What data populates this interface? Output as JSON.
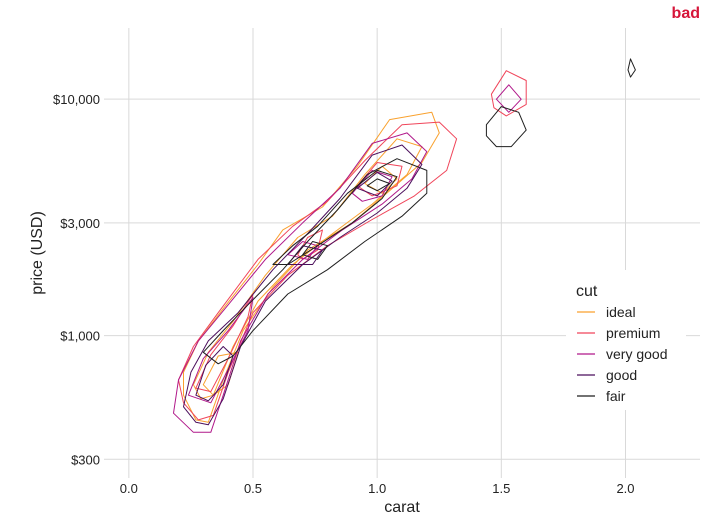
{
  "corner_label": "bad",
  "colors": {
    "corner_label": "#d6163a",
    "grid": "#d9d9d9",
    "panel": "#ebebeb"
  },
  "chart_data": {
    "type": "contour",
    "xlabel": "carat",
    "ylabel": "price (USD)",
    "xlim": [
      -0.1,
      2.3
    ],
    "ylim": [
      250,
      20000
    ],
    "y_scale": "log",
    "x_ticks": [
      0.0,
      0.5,
      1.0,
      1.5,
      2.0
    ],
    "x_tick_labels": [
      "0.0",
      "0.5",
      "1.0",
      "1.5",
      "2.0"
    ],
    "y_ticks": [
      300,
      1000,
      3000,
      10000
    ],
    "y_tick_labels": [
      "$300",
      "$1,000",
      "$3,000",
      "$10,000"
    ],
    "grid": true,
    "legend": {
      "title": "cut",
      "position": "right",
      "entries": [
        "ideal",
        "premium",
        "very good",
        "good",
        "fair"
      ]
    },
    "series": [
      {
        "name": "ideal",
        "color": "#f9a12e",
        "contours": [
          [
            [
              0.22,
              700
            ],
            [
              0.28,
              950
            ],
            [
              0.38,
              1300
            ],
            [
              0.52,
              2000
            ],
            [
              0.62,
              2800
            ],
            [
              0.78,
              3500
            ],
            [
              0.92,
              5200
            ],
            [
              1.05,
              8200
            ],
            [
              1.22,
              8800
            ],
            [
              1.25,
              7200
            ],
            [
              1.18,
              5400
            ],
            [
              1.05,
              4100
            ],
            [
              0.9,
              3000
            ],
            [
              0.72,
              2300
            ],
            [
              0.58,
              1600
            ],
            [
              0.46,
              1050
            ],
            [
              0.38,
              650
            ],
            [
              0.32,
              430
            ],
            [
              0.27,
              440
            ],
            [
              0.22,
              560
            ]
          ],
          [
            [
              0.26,
              620
            ],
            [
              0.32,
              850
            ],
            [
              0.42,
              1150
            ],
            [
              0.55,
              1800
            ],
            [
              0.68,
              2600
            ],
            [
              0.82,
              3200
            ],
            [
              0.95,
              4800
            ],
            [
              1.08,
              6800
            ],
            [
              1.18,
              6300
            ],
            [
              1.12,
              4800
            ],
            [
              0.98,
              3600
            ],
            [
              0.82,
              2700
            ],
            [
              0.66,
              2000
            ],
            [
              0.52,
              1400
            ],
            [
              0.42,
              900
            ],
            [
              0.34,
              560
            ],
            [
              0.29,
              540
            ]
          ],
          [
            [
              0.3,
              620
            ],
            [
              0.36,
              820
            ],
            [
              0.44,
              850
            ],
            [
              0.4,
              620
            ],
            [
              0.34,
              560
            ]
          ],
          [
            [
              0.95,
              4400
            ],
            [
              1.02,
              5200
            ],
            [
              1.08,
              4600
            ],
            [
              1.02,
              4000
            ]
          ]
        ]
      },
      {
        "name": "premium",
        "color": "#f0455a",
        "contours": [
          [
            [
              0.2,
              650
            ],
            [
              0.26,
              900
            ],
            [
              0.36,
              1250
            ],
            [
              0.52,
              2100
            ],
            [
              0.66,
              2900
            ],
            [
              0.8,
              3700
            ],
            [
              0.95,
              5500
            ],
            [
              1.1,
              7800
            ],
            [
              1.25,
              8000
            ],
            [
              1.32,
              6800
            ],
            [
              1.28,
              5000
            ],
            [
              1.15,
              3900
            ],
            [
              0.98,
              3100
            ],
            [
              0.8,
              2400
            ],
            [
              0.64,
              1800
            ],
            [
              0.5,
              1250
            ],
            [
              0.4,
              700
            ],
            [
              0.34,
              460
            ],
            [
              0.28,
              440
            ],
            [
              0.22,
              520
            ]
          ],
          [
            [
              0.27,
              600
            ],
            [
              0.33,
              830
            ],
            [
              0.42,
              1100
            ],
            [
              0.5,
              1500
            ],
            [
              0.48,
              1200
            ],
            [
              0.4,
              800
            ],
            [
              0.33,
              580
            ]
          ],
          [
            [
              0.68,
              2200
            ],
            [
              0.72,
              2600
            ],
            [
              0.78,
              2800
            ],
            [
              0.76,
              2300
            ],
            [
              0.7,
              2100
            ]
          ],
          [
            [
              0.92,
              4300
            ],
            [
              1.0,
              5400
            ],
            [
              1.1,
              5200
            ],
            [
              1.08,
              4300
            ],
            [
              0.98,
              3900
            ]
          ],
          [
            [
              1.46,
              10500
            ],
            [
              1.52,
              13200
            ],
            [
              1.6,
              12000
            ],
            [
              1.6,
              9500
            ],
            [
              1.52,
              8500
            ],
            [
              1.47,
              9200
            ]
          ]
        ]
      },
      {
        "name": "very good",
        "color": "#b0188a",
        "contours": [
          [
            [
              0.18,
              470
            ],
            [
              0.2,
              650
            ],
            [
              0.28,
              950
            ],
            [
              0.4,
              1350
            ],
            [
              0.55,
              2100
            ],
            [
              0.7,
              3000
            ],
            [
              0.85,
              4200
            ],
            [
              0.98,
              6500
            ],
            [
              1.12,
              7200
            ],
            [
              1.2,
              6000
            ],
            [
              1.14,
              4600
            ],
            [
              1.02,
              3600
            ],
            [
              0.86,
              2800
            ],
            [
              0.7,
              2100
            ],
            [
              0.56,
              1500
            ],
            [
              0.45,
              950
            ],
            [
              0.38,
              560
            ],
            [
              0.33,
              390
            ],
            [
              0.26,
              390
            ]
          ],
          [
            [
              0.24,
              560
            ],
            [
              0.3,
              800
            ],
            [
              0.4,
              1050
            ],
            [
              0.5,
              1450
            ],
            [
              0.48,
              1050
            ],
            [
              0.4,
              720
            ],
            [
              0.33,
              520
            ]
          ],
          [
            [
              0.64,
              2200
            ],
            [
              0.7,
              2500
            ],
            [
              0.76,
              2400
            ],
            [
              0.72,
              2100
            ]
          ],
          [
            [
              0.9,
              4000
            ],
            [
              0.98,
              5000
            ],
            [
              1.06,
              4700
            ],
            [
              1.02,
              3900
            ],
            [
              0.94,
              3700
            ]
          ],
          [
            [
              1.48,
              10000
            ],
            [
              1.53,
              11500
            ],
            [
              1.58,
              10000
            ],
            [
              1.53,
              8800
            ]
          ]
        ]
      },
      {
        "name": "good",
        "color": "#4b0f5c",
        "contours": [
          [
            [
              0.22,
              500
            ],
            [
              0.25,
              700
            ],
            [
              0.32,
              950
            ],
            [
              0.44,
              1250
            ],
            [
              0.58,
              1900
            ],
            [
              0.72,
              2700
            ],
            [
              0.85,
              3800
            ],
            [
              0.98,
              5800
            ],
            [
              1.1,
              6400
            ],
            [
              1.18,
              5300
            ],
            [
              1.12,
              4200
            ],
            [
              1.0,
              3300
            ],
            [
              0.85,
              2600
            ],
            [
              0.7,
              2000
            ],
            [
              0.55,
              1400
            ],
            [
              0.45,
              900
            ],
            [
              0.38,
              540
            ],
            [
              0.32,
              420
            ],
            [
              0.27,
              430
            ]
          ],
          [
            [
              0.27,
              560
            ],
            [
              0.31,
              750
            ],
            [
              0.38,
              900
            ],
            [
              0.42,
              820
            ],
            [
              0.38,
              620
            ],
            [
              0.32,
              530
            ]
          ],
          [
            [
              0.64,
              2000
            ],
            [
              0.7,
              2400
            ],
            [
              0.78,
              2300
            ],
            [
              0.74,
              2000
            ]
          ],
          [
            [
              0.92,
              4200
            ],
            [
              1.0,
              4900
            ],
            [
              1.06,
              4500
            ],
            [
              1.0,
              3900
            ]
          ]
        ]
      },
      {
        "name": "fair",
        "color": "#1f1f1f",
        "contours": [
          [
            [
              0.3,
              850
            ],
            [
              0.38,
              1050
            ],
            [
              0.48,
              1350
            ],
            [
              0.62,
              1900
            ],
            [
              0.72,
              2500
            ],
            [
              0.84,
              3400
            ],
            [
              0.96,
              4800
            ],
            [
              1.08,
              5600
            ],
            [
              1.2,
              5000
            ],
            [
              1.2,
              4000
            ],
            [
              1.1,
              3200
            ],
            [
              0.95,
              2500
            ],
            [
              0.8,
              1900
            ],
            [
              0.64,
              1500
            ],
            [
              0.5,
              1050
            ],
            [
              0.42,
              820
            ],
            [
              0.36,
              760
            ]
          ],
          [
            [
              0.58,
              2000
            ],
            [
              0.66,
              2400
            ],
            [
              0.76,
              2900
            ],
            [
              0.88,
              4000
            ],
            [
              1.0,
              5000
            ],
            [
              1.08,
              4700
            ],
            [
              1.02,
              3800
            ],
            [
              0.9,
              3000
            ],
            [
              0.76,
              2400
            ],
            [
              0.64,
              2000
            ]
          ],
          [
            [
              0.7,
              2200
            ],
            [
              0.74,
              2500
            ],
            [
              0.8,
              2400
            ],
            [
              0.76,
              2100
            ]
          ],
          [
            [
              0.96,
              4300
            ],
            [
              1.0,
              4600
            ],
            [
              1.05,
              4400
            ],
            [
              1.0,
              4100
            ]
          ],
          [
            [
              1.44,
              7800
            ],
            [
              1.5,
              9300
            ],
            [
              1.57,
              8800
            ],
            [
              1.6,
              7400
            ],
            [
              1.54,
              6300
            ],
            [
              1.48,
              6300
            ],
            [
              1.44,
              7000
            ]
          ],
          [
            [
              2.01,
              13300
            ],
            [
              2.02,
              14800
            ],
            [
              2.04,
              13300
            ],
            [
              2.02,
              12400
            ]
          ]
        ]
      }
    ]
  }
}
